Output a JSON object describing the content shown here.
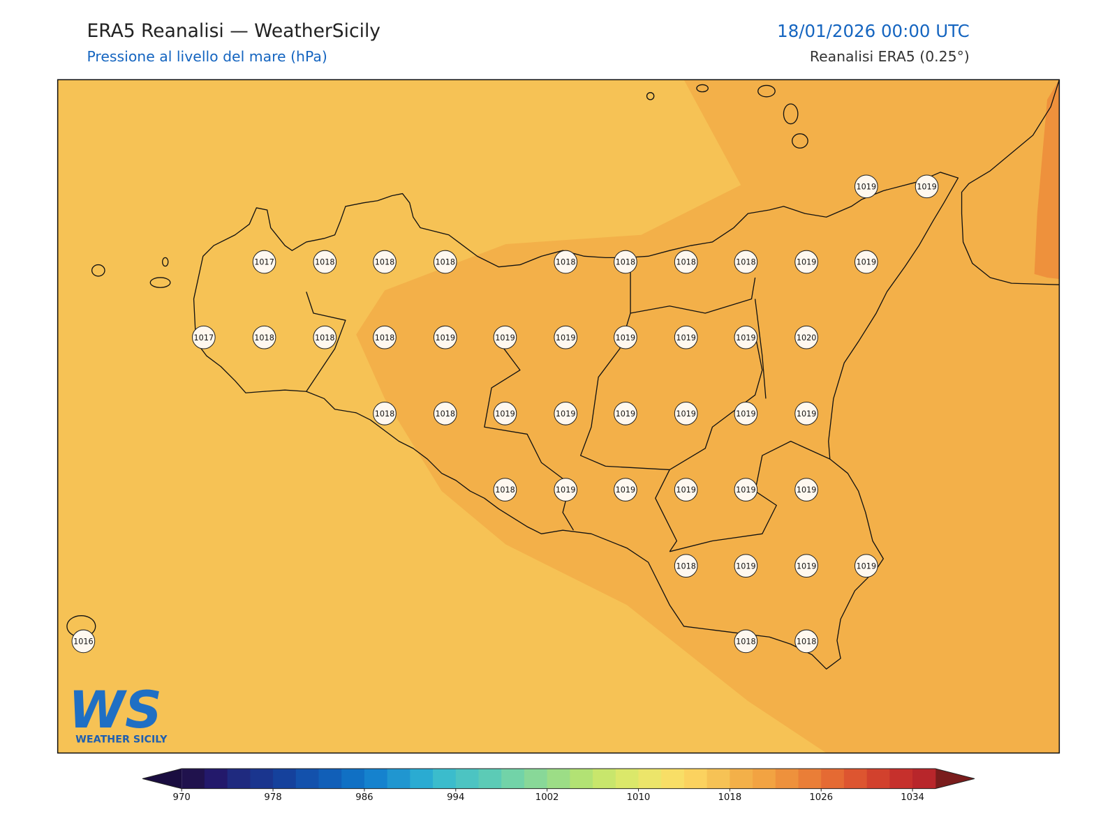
{
  "header": {
    "title": "ERA5 Reanalisi — WeatherSicily",
    "subtitle": "Pressione al livello del mare (hPa)",
    "datetime": "18/01/2026 00:00 UTC",
    "source": "Reanalisi ERA5 (0.25°)"
  },
  "map": {
    "stations": [
      1019,
      1019,
      1017,
      1018,
      1018,
      1018,
      1018,
      1018,
      1018,
      1018,
      1019,
      1019,
      1017,
      1018,
      1018,
      1018,
      1019,
      1019,
      1019,
      1019,
      1019,
      1019,
      1020,
      1018,
      1018,
      1019,
      1019,
      1019,
      1019,
      1019,
      1019,
      1018,
      1019,
      1019,
      1019,
      1019,
      1019,
      1018,
      1019,
      1019,
      1019,
      1016,
      1018,
      1018
    ]
  },
  "colorbar": {
    "clim": [
      970,
      1036
    ],
    "step": 2,
    "ticks": [
      970,
      978,
      986,
      994,
      1002,
      1010,
      1018,
      1026,
      1034
    ],
    "colors": [
      "#20124d",
      "#23196b",
      "#1f2a7f",
      "#1a358e",
      "#15419c",
      "#1351ac",
      "#115fb8",
      "#1070c4",
      "#1582ce",
      "#2096d0",
      "#2aabd2",
      "#3bbccc",
      "#4cc4c2",
      "#5ccbb6",
      "#72d3a8",
      "#88d898",
      "#9cdd86",
      "#b2e274",
      "#c8e66c",
      "#dbe86a",
      "#ece56a",
      "#f8de66",
      "#fbd25f",
      "#f6c255",
      "#f3b049",
      "#f2a342",
      "#ee913c",
      "#ea7e37",
      "#e56a33",
      "#dd5530",
      "#d2412d",
      "#c6302c",
      "#b8262b"
    ],
    "under": "#1a0d40",
    "over": "#7a1c1c"
  },
  "logo": {
    "mark": "WS",
    "text": "WEATHER SICILY"
  }
}
